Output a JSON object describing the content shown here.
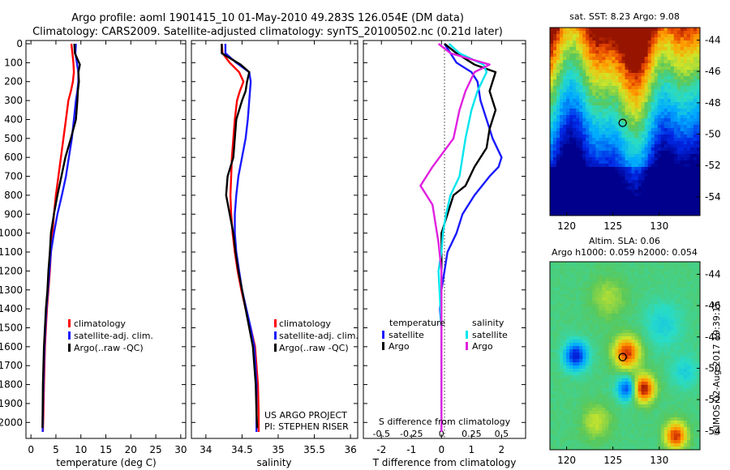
{
  "header": {
    "line1": "Argo profile: aoml 1901415_10 01-May-2010 49.283S 126.054E (DM data)",
    "line2": "Climatology: CARS2009. Satellite-adjusted climatology: synTS_20100502.nc (0.21d later)"
  },
  "colors": {
    "climatology": "#ff0000",
    "satellite": "#1a1aff",
    "argo": "#000000",
    "satellite_salinity": "#00e5ee",
    "argo_salinity": "#e020e0"
  },
  "chart_data": [
    {
      "type": "line",
      "id": "temperature",
      "xlabel": "temperature (deg C)",
      "ylabel": "",
      "xlim": [
        -1,
        31
      ],
      "ylim": [
        2080,
        0
      ],
      "xticks": [
        0,
        5,
        10,
        15,
        20,
        25,
        30
      ],
      "yticks": [
        0,
        100,
        200,
        300,
        400,
        500,
        600,
        700,
        800,
        900,
        1000,
        1100,
        1200,
        1300,
        1400,
        1500,
        1600,
        1700,
        1800,
        1900,
        2000
      ],
      "legend": [
        "climatology",
        "satellite-adj. clim.",
        "Argo(..raw -QC)"
      ],
      "series": [
        {
          "name": "climatology",
          "color": "#ff0000",
          "x": [
            8.1,
            8.3,
            8.5,
            8.6,
            8.4,
            8.0,
            7.5,
            7.0,
            6.5,
            6.0,
            5.5,
            5.0,
            4.6,
            4.3,
            4.0,
            3.8,
            3.5,
            3.2,
            3.0,
            2.8,
            2.6,
            2.5,
            2.4
          ],
          "y": [
            0,
            50,
            100,
            150,
            200,
            250,
            300,
            400,
            500,
            600,
            700,
            800,
            900,
            1000,
            1100,
            1200,
            1300,
            1400,
            1500,
            1600,
            1800,
            1950,
            2050
          ]
        },
        {
          "name": "satellite-adj. clim.",
          "color": "#1a1aff",
          "x": [
            9.0,
            8.9,
            9.2,
            9.5,
            9.5,
            9.3,
            9.0,
            8.6,
            8.2,
            7.6,
            7.0,
            6.2,
            5.3,
            4.6,
            4.0,
            3.7,
            3.4,
            3.1,
            2.9,
            2.7,
            2.5,
            2.4,
            2.35
          ],
          "y": [
            0,
            50,
            100,
            150,
            200,
            250,
            300,
            400,
            500,
            600,
            700,
            800,
            900,
            1000,
            1100,
            1200,
            1300,
            1400,
            1500,
            1600,
            1800,
            1950,
            2050
          ]
        },
        {
          "name": "Argo(..raw -QC)",
          "color": "#000000",
          "x": [
            8.7,
            8.8,
            9.8,
            9.5,
            9.6,
            9.4,
            9.3,
            9.0,
            8.0,
            6.9,
            6.1,
            5.3,
            4.6,
            4.0,
            3.8,
            3.5,
            3.3,
            3.0,
            2.8,
            2.6,
            2.4,
            2.35,
            2.3
          ],
          "y": [
            0,
            50,
            110,
            150,
            200,
            250,
            300,
            400,
            500,
            600,
            700,
            800,
            900,
            1000,
            1100,
            1200,
            1300,
            1400,
            1500,
            1600,
            1800,
            1950,
            2030
          ]
        }
      ]
    },
    {
      "type": "line",
      "id": "salinity",
      "xlabel": "salinity",
      "ylabel": "",
      "xlim": [
        33.8,
        36.1
      ],
      "ylim": [
        2080,
        0
      ],
      "xticks": [
        34,
        34.5,
        35,
        35.5,
        36
      ],
      "legend": [
        "climatology",
        "satellite-adj. clim.",
        "Argo(..raw -QC)"
      ],
      "series": [
        {
          "name": "climatology",
          "color": "#ff0000",
          "x": [
            34.22,
            34.23,
            34.33,
            34.46,
            34.52,
            34.47,
            34.43,
            34.4,
            34.38,
            34.36,
            34.35,
            34.34,
            34.35,
            34.37,
            34.4,
            34.44,
            34.49,
            34.55,
            34.62,
            34.68,
            34.72,
            34.73,
            34.73
          ],
          "y": [
            0,
            50,
            100,
            150,
            200,
            250,
            300,
            400,
            500,
            600,
            700,
            800,
            900,
            1000,
            1100,
            1200,
            1300,
            1400,
            1500,
            1600,
            1800,
            1950,
            2050
          ]
        },
        {
          "name": "satellite-adj. clim.",
          "color": "#1a1aff",
          "x": [
            34.27,
            34.27,
            34.42,
            34.6,
            34.62,
            34.61,
            34.6,
            34.58,
            34.55,
            34.5,
            34.45,
            34.42,
            34.4,
            34.4,
            34.42,
            34.46,
            34.5,
            34.56,
            34.62,
            34.67,
            34.7,
            34.7,
            34.7
          ],
          "y": [
            0,
            50,
            100,
            150,
            200,
            250,
            300,
            400,
            500,
            600,
            700,
            800,
            900,
            1000,
            1100,
            1200,
            1300,
            1400,
            1500,
            1600,
            1800,
            1950,
            2050
          ]
        },
        {
          "name": "Argo(..raw -QC)",
          "color": "#000000",
          "x": [
            34.22,
            34.22,
            34.48,
            34.6,
            34.57,
            34.55,
            34.5,
            34.42,
            34.4,
            34.38,
            34.3,
            34.28,
            34.33,
            34.38,
            34.41,
            34.45,
            34.5,
            34.55,
            34.6,
            34.65,
            34.69,
            34.7,
            34.71
          ],
          "y": [
            0,
            50,
            110,
            150,
            200,
            250,
            300,
            400,
            500,
            600,
            700,
            800,
            900,
            1000,
            1100,
            1200,
            1300,
            1400,
            1500,
            1600,
            1800,
            1950,
            2030
          ]
        }
      ]
    },
    {
      "type": "line",
      "id": "difference",
      "xlabel": "T difference from climatology",
      "ylabel": "",
      "xlim": [
        -2.6,
        2.8
      ],
      "ylim": [
        2080,
        0
      ],
      "xticks": [
        -2,
        -1,
        0,
        1,
        2
      ],
      "top_xticks": [
        "-0.5",
        "-0.25",
        "0",
        "0.25",
        "0.5"
      ],
      "top_xlabel": "S difference from climatology",
      "legend_groups": [
        "temperature",
        "salinity"
      ],
      "legend": [
        "satellite",
        "Argo",
        "satellite",
        "Argo"
      ],
      "series": [
        {
          "name": "temperature satellite",
          "color": "#1a1aff",
          "x": [
            0.1,
            0.3,
            0.5,
            1.0,
            1.2,
            1.3,
            1.5,
            1.7,
            2.0,
            1.9,
            1.6,
            1.1,
            0.7,
            0.5,
            0.2,
            0.1,
            0.0,
            -0.05,
            0.0,
            0.0,
            0.0,
            0.0
          ],
          "y": [
            0,
            50,
            100,
            150,
            200,
            300,
            400,
            500,
            600,
            650,
            700,
            800,
            900,
            1000,
            1100,
            1200,
            1300,
            1400,
            1500,
            1700,
            1900,
            2050
          ]
        },
        {
          "name": "temperature Argo",
          "color": "#000000",
          "x": [
            0.1,
            0.5,
            1.1,
            1.8,
            1.6,
            1.8,
            1.6,
            1.5,
            1.1,
            0.8,
            0.4,
            0.2,
            0.0,
            0.0,
            0.0,
            0.0,
            0.0
          ],
          "y": [
            0,
            50,
            110,
            150,
            250,
            350,
            450,
            550,
            650,
            750,
            800,
            900,
            1000,
            1200,
            1400,
            1700,
            2050
          ]
        },
        {
          "name": "salinity satellite",
          "color": "#00e5ee",
          "x": [
            0.25,
            0.6,
            1.4,
            1.5,
            1.2,
            1.0,
            0.8,
            0.6,
            0.3,
            0.15,
            0.05,
            0.0,
            -0.1,
            0.0,
            0.0,
            0.0
          ],
          "y": [
            0,
            50,
            110,
            150,
            250,
            350,
            500,
            700,
            800,
            900,
            1000,
            1100,
            1200,
            1500,
            1800,
            2050
          ]
        },
        {
          "name": "salinity Argo",
          "color": "#e020e0",
          "x": [
            -0.1,
            0.3,
            1.6,
            1.1,
            0.8,
            0.6,
            0.4,
            -0.3,
            -0.7,
            -0.3,
            -0.2,
            -0.1,
            0.0,
            0.0,
            0.0
          ],
          "y": [
            0,
            50,
            110,
            150,
            250,
            350,
            500,
            650,
            750,
            850,
            950,
            1050,
            1200,
            1500,
            2050
          ]
        }
      ]
    },
    {
      "type": "heatmap",
      "id": "sst_map",
      "title": "sat. SST: 8.23 Argo: 9.08",
      "xticks": [
        120,
        125,
        130
      ],
      "yticks": [
        -44,
        -46,
        -48,
        -50,
        -52,
        -54
      ],
      "xlim": [
        118.2,
        134.4
      ],
      "ylim": [
        -55.2,
        -43.2
      ],
      "marker": {
        "lon": 126.054,
        "lat": -49.283
      }
    },
    {
      "type": "heatmap",
      "id": "sla_map",
      "title": "Altim. SLA: 0.06",
      "subtitle": "Argo h1000: 0.059 h2000: 0.054",
      "xticks": [
        120,
        125,
        130
      ],
      "yticks": [
        -44,
        -46,
        -48,
        -50,
        -52,
        -54
      ],
      "xlim": [
        118.2,
        134.4
      ],
      "ylim": [
        -55.2,
        -43.2
      ],
      "marker": {
        "lon": 126.054,
        "lat": -49.283
      }
    }
  ],
  "footer": {
    "project": "US ARGO PROJECT",
    "pi": "PI: STEPHEN RISER",
    "credit": "©IMOS 02-Aug-2017 19:39:15"
  }
}
